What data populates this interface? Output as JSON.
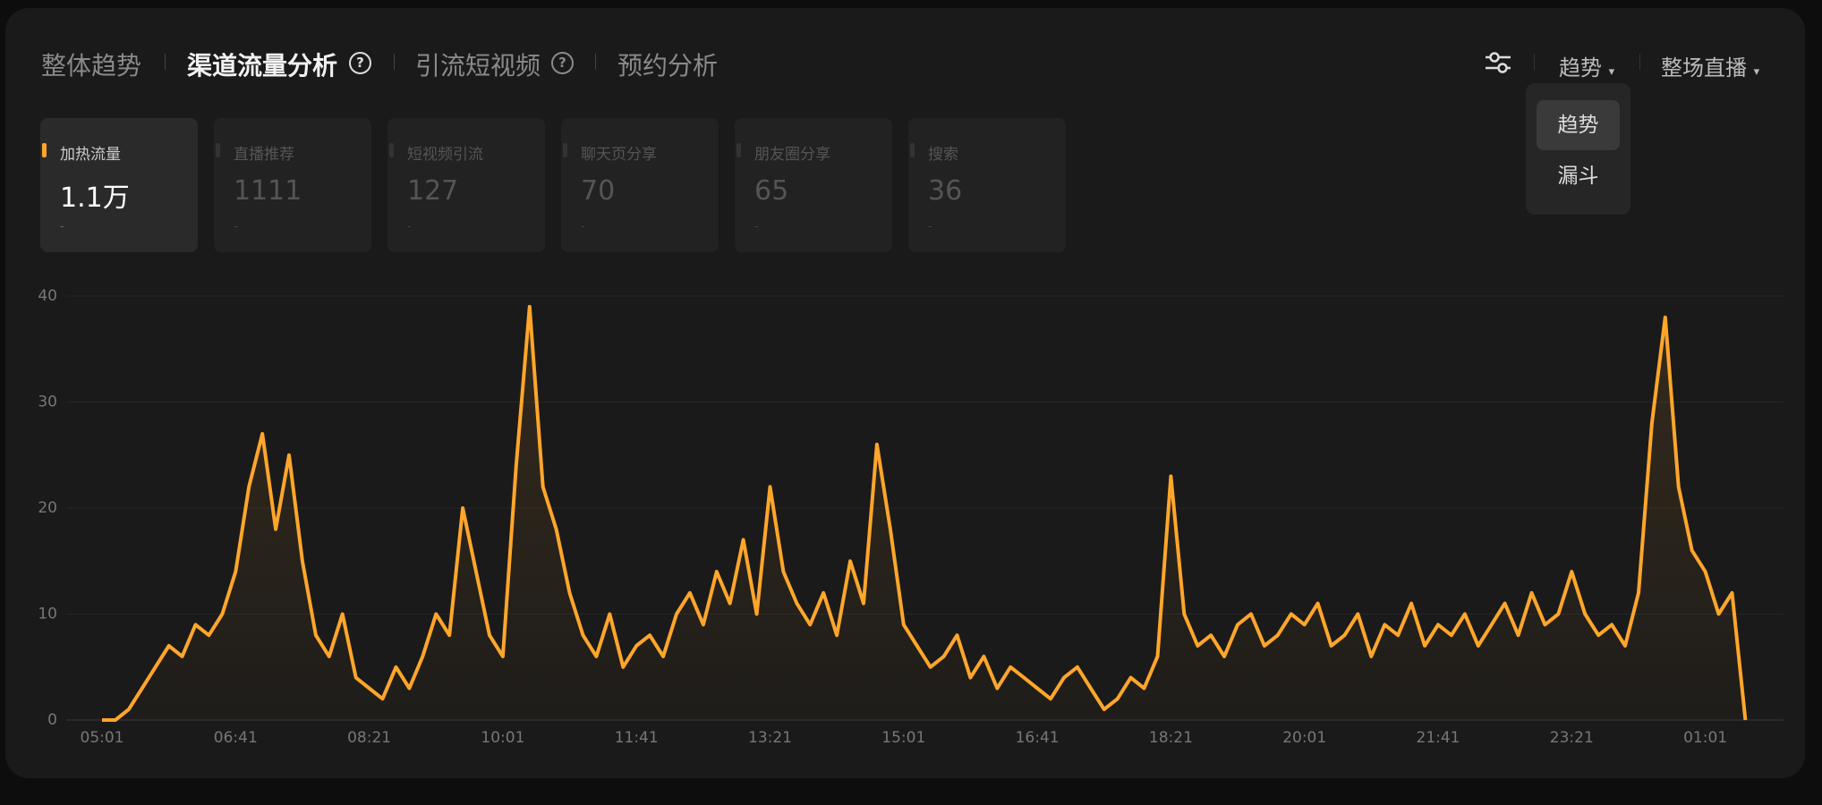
{
  "tabs": [
    "整体趋势",
    "渠道流量分析",
    "引流短视频",
    "预约分析"
  ],
  "controls": {
    "view": "趋势",
    "scope": "整场直播"
  },
  "dropdown": [
    "趋势",
    "漏斗"
  ],
  "metrics": [
    {
      "label": "加热流量",
      "value": "1.1万",
      "change": "-"
    },
    {
      "label": "直播推荐",
      "value": "1111",
      "change": "-"
    },
    {
      "label": "短视频引流",
      "value": "127",
      "change": "-"
    },
    {
      "label": "聊天页分享",
      "value": "70",
      "change": "-"
    },
    {
      "label": "朋友圈分享",
      "value": "65",
      "change": "-"
    },
    {
      "label": "搜索",
      "value": "36",
      "change": "-"
    }
  ],
  "chart_data": {
    "type": "line",
    "color": "#ffa62b",
    "grid": true,
    "ylim": [
      0,
      40
    ],
    "yticks": [
      0,
      10,
      20,
      30,
      40
    ],
    "categories": [
      "05:01",
      null,
      null,
      null,
      null,
      null,
      null,
      null,
      null,
      null,
      "06:41",
      null,
      null,
      null,
      null,
      null,
      null,
      null,
      null,
      null,
      "08:21",
      null,
      null,
      null,
      null,
      null,
      null,
      null,
      null,
      null,
      "10:01",
      null,
      null,
      null,
      null,
      null,
      null,
      null,
      null,
      null,
      "11:41",
      null,
      null,
      null,
      null,
      null,
      null,
      null,
      null,
      null,
      "13:21",
      null,
      null,
      null,
      null,
      null,
      null,
      null,
      null,
      null,
      "15:01",
      null,
      null,
      null,
      null,
      null,
      null,
      null,
      null,
      null,
      "16:41",
      null,
      null,
      null,
      null,
      null,
      null,
      null,
      null,
      null,
      "18:21",
      null,
      null,
      null,
      null,
      null,
      null,
      null,
      null,
      null,
      "20:01",
      null,
      null,
      null,
      null,
      null,
      null,
      null,
      null,
      null,
      "21:41",
      null,
      null,
      null,
      null,
      null,
      null,
      null,
      null,
      null,
      "23:21",
      null,
      null,
      null,
      null,
      null,
      null,
      null,
      null,
      null,
      "01:01",
      null,
      null,
      null
    ],
    "values": [
      0,
      0,
      1,
      3,
      5,
      7,
      6,
      9,
      8,
      10,
      14,
      22,
      27,
      18,
      25,
      15,
      8,
      6,
      10,
      4,
      3,
      2,
      5,
      3,
      6,
      10,
      8,
      20,
      14,
      8,
      6,
      24,
      39,
      22,
      18,
      12,
      8,
      6,
      10,
      5,
      7,
      8,
      6,
      10,
      12,
      9,
      14,
      11,
      17,
      10,
      22,
      14,
      11,
      9,
      12,
      8,
      15,
      11,
      26,
      18,
      9,
      7,
      5,
      6,
      8,
      4,
      6,
      3,
      5,
      4,
      3,
      2,
      4,
      5,
      3,
      1,
      2,
      4,
      3,
      6,
      23,
      10,
      7,
      8,
      6,
      9,
      10,
      7,
      8,
      10,
      9,
      11,
      7,
      8,
      10,
      6,
      9,
      8,
      11,
      7,
      9,
      8,
      10,
      7,
      9,
      11,
      8,
      12,
      9,
      10,
      14,
      10,
      8,
      9,
      7,
      12,
      28,
      38,
      22,
      16,
      14,
      10,
      12,
      0
    ]
  }
}
